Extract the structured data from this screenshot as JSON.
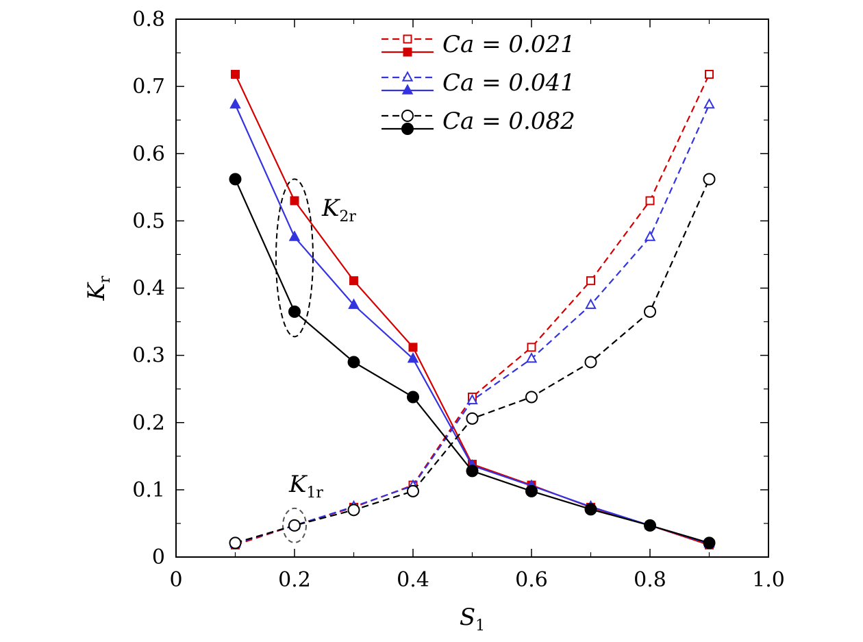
{
  "chart_data": {
    "type": "line",
    "xlabel": "S",
    "xlabel_sub": "1",
    "ylabel": "K",
    "ylabel_sub": "r",
    "xlim": [
      0,
      1.0
    ],
    "ylim": [
      0,
      0.8
    ],
    "xticks": [
      0,
      0.2,
      0.4,
      0.6,
      0.8,
      1.0
    ],
    "xtick_labels": [
      "0",
      "0.2",
      "0.4",
      "0.6",
      "0.8",
      "1.0"
    ],
    "yticks": [
      0,
      0.1,
      0.2,
      0.3,
      0.4,
      0.5,
      0.6,
      0.7,
      0.8
    ],
    "ytick_labels": [
      "0",
      "0.1",
      "0.2",
      "0.3",
      "0.4",
      "0.5",
      "0.6",
      "0.7",
      "0.8"
    ],
    "grid": false,
    "legend_position": "top-center",
    "x": [
      0.1,
      0.2,
      0.3,
      0.4,
      0.5,
      0.6,
      0.7,
      0.8,
      0.9
    ],
    "groups": [
      {
        "legend": "Ca = 0.021",
        "color": "#d40000",
        "marker": "square",
        "k1r": [
          0.018,
          0.047,
          0.074,
          0.107,
          0.238,
          0.312,
          0.411,
          0.53,
          0.718
        ],
        "k2r": [
          0.718,
          0.53,
          0.411,
          0.312,
          0.138,
          0.107,
          0.074,
          0.047,
          0.018
        ]
      },
      {
        "legend": "Ca = 0.041",
        "color": "#3333e0",
        "marker": "triangle",
        "k1r": [
          0.02,
          0.047,
          0.075,
          0.106,
          0.233,
          0.295,
          0.375,
          0.476,
          0.673
        ],
        "k2r": [
          0.673,
          0.476,
          0.375,
          0.295,
          0.136,
          0.106,
          0.075,
          0.047,
          0.02
        ]
      },
      {
        "legend": "Ca = 0.082",
        "color": "#000000",
        "marker": "circle",
        "k1r": [
          0.021,
          0.047,
          0.07,
          0.098,
          0.206,
          0.238,
          0.29,
          0.365,
          0.562
        ],
        "k2r": [
          0.562,
          0.365,
          0.29,
          0.238,
          0.128,
          0.098,
          0.071,
          0.047,
          0.021
        ]
      }
    ],
    "annotations": [
      {
        "main": "K",
        "sub": "2r"
      },
      {
        "main": "K",
        "sub": "1r"
      }
    ]
  }
}
